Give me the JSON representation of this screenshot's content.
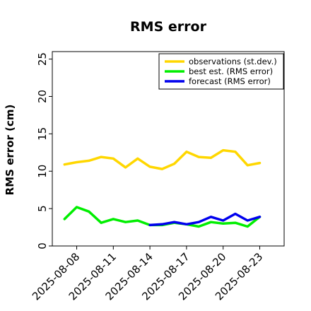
{
  "chart_data": {
    "type": "line",
    "title": "RMS error",
    "xlabel": "",
    "ylabel": "RMS error (cm)",
    "ylim": [
      0,
      26
    ],
    "yticks": [
      0,
      5,
      10,
      15,
      20,
      25
    ],
    "xlim": [
      "2025-08-06",
      "2025-08-25"
    ],
    "xticks": [
      "2025-08-08",
      "2025-08-11",
      "2025-08-14",
      "2025-08-17",
      "2025-08-20",
      "2025-08-23"
    ],
    "highlighted_tick": "2025-08-14",
    "highlight_color": "#228B22",
    "grid": false,
    "legend_position": "top-right",
    "series": [
      {
        "name": "observations (st.dev.)",
        "color": "#FFD700",
        "x": [
          "2025-08-07",
          "2025-08-08",
          "2025-08-09",
          "2025-08-10",
          "2025-08-11",
          "2025-08-12",
          "2025-08-13",
          "2025-08-14",
          "2025-08-15",
          "2025-08-16",
          "2025-08-17",
          "2025-08-18",
          "2025-08-19",
          "2025-08-20",
          "2025-08-21",
          "2025-08-22",
          "2025-08-23"
        ],
        "values": [
          10.9,
          11.2,
          11.4,
          11.9,
          11.7,
          10.5,
          11.7,
          10.6,
          10.3,
          11.0,
          12.6,
          11.9,
          11.8,
          12.8,
          12.6,
          10.8,
          11.1
        ]
      },
      {
        "name": "best est. (RMS error)",
        "color": "#00EE00",
        "x": [
          "2025-08-07",
          "2025-08-08",
          "2025-08-09",
          "2025-08-10",
          "2025-08-11",
          "2025-08-12",
          "2025-08-13",
          "2025-08-14",
          "2025-08-15",
          "2025-08-16",
          "2025-08-17",
          "2025-08-18",
          "2025-08-19",
          "2025-08-20",
          "2025-08-21",
          "2025-08-22",
          "2025-08-23"
        ],
        "values": [
          3.6,
          5.2,
          4.6,
          3.1,
          3.6,
          3.2,
          3.4,
          2.8,
          2.8,
          3.1,
          2.9,
          2.6,
          3.2,
          3.0,
          3.1,
          2.6,
          3.9
        ]
      },
      {
        "name": "forecast (RMS error)",
        "color": "#0000EE",
        "x": [
          "2025-08-14",
          "2025-08-15",
          "2025-08-16",
          "2025-08-17",
          "2025-08-18",
          "2025-08-19",
          "2025-08-20",
          "2025-08-21",
          "2025-08-22",
          "2025-08-23"
        ],
        "values": [
          2.8,
          2.9,
          3.2,
          2.9,
          3.2,
          3.9,
          3.4,
          4.3,
          3.4,
          3.9
        ]
      }
    ]
  }
}
